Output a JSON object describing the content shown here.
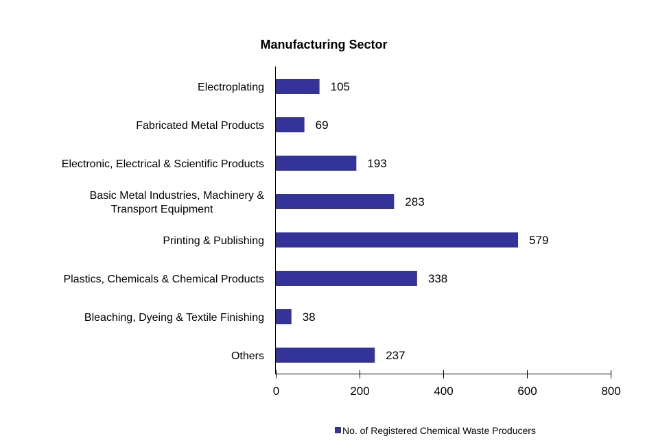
{
  "chart_data": {
    "type": "bar",
    "orientation": "horizontal",
    "title": "Manufacturing Sector",
    "categories": [
      [
        "Electroplating"
      ],
      [
        "Fabricated Metal Products"
      ],
      [
        "Electronic, Electrical & Scientific Products"
      ],
      [
        "Basic Metal Industries, Machinery &",
        "Transport Equipment"
      ],
      [
        "Printing & Publishing"
      ],
      [
        "Plastics, Chemicals & Chemical Products"
      ],
      [
        "Bleaching, Dyeing & Textile Finishing"
      ],
      [
        "Others"
      ]
    ],
    "series": [
      {
        "name": "No. of Registered Chemical Waste Producers",
        "color": "#333399",
        "values": [
          105,
          69,
          193,
          283,
          579,
          338,
          38,
          237
        ]
      }
    ],
    "xlim": [
      0,
      800
    ],
    "xticks": [
      "0",
      "200",
      "400",
      "600",
      "800"
    ],
    "data_labels": true,
    "grid": false,
    "legend": "bottom-right"
  }
}
